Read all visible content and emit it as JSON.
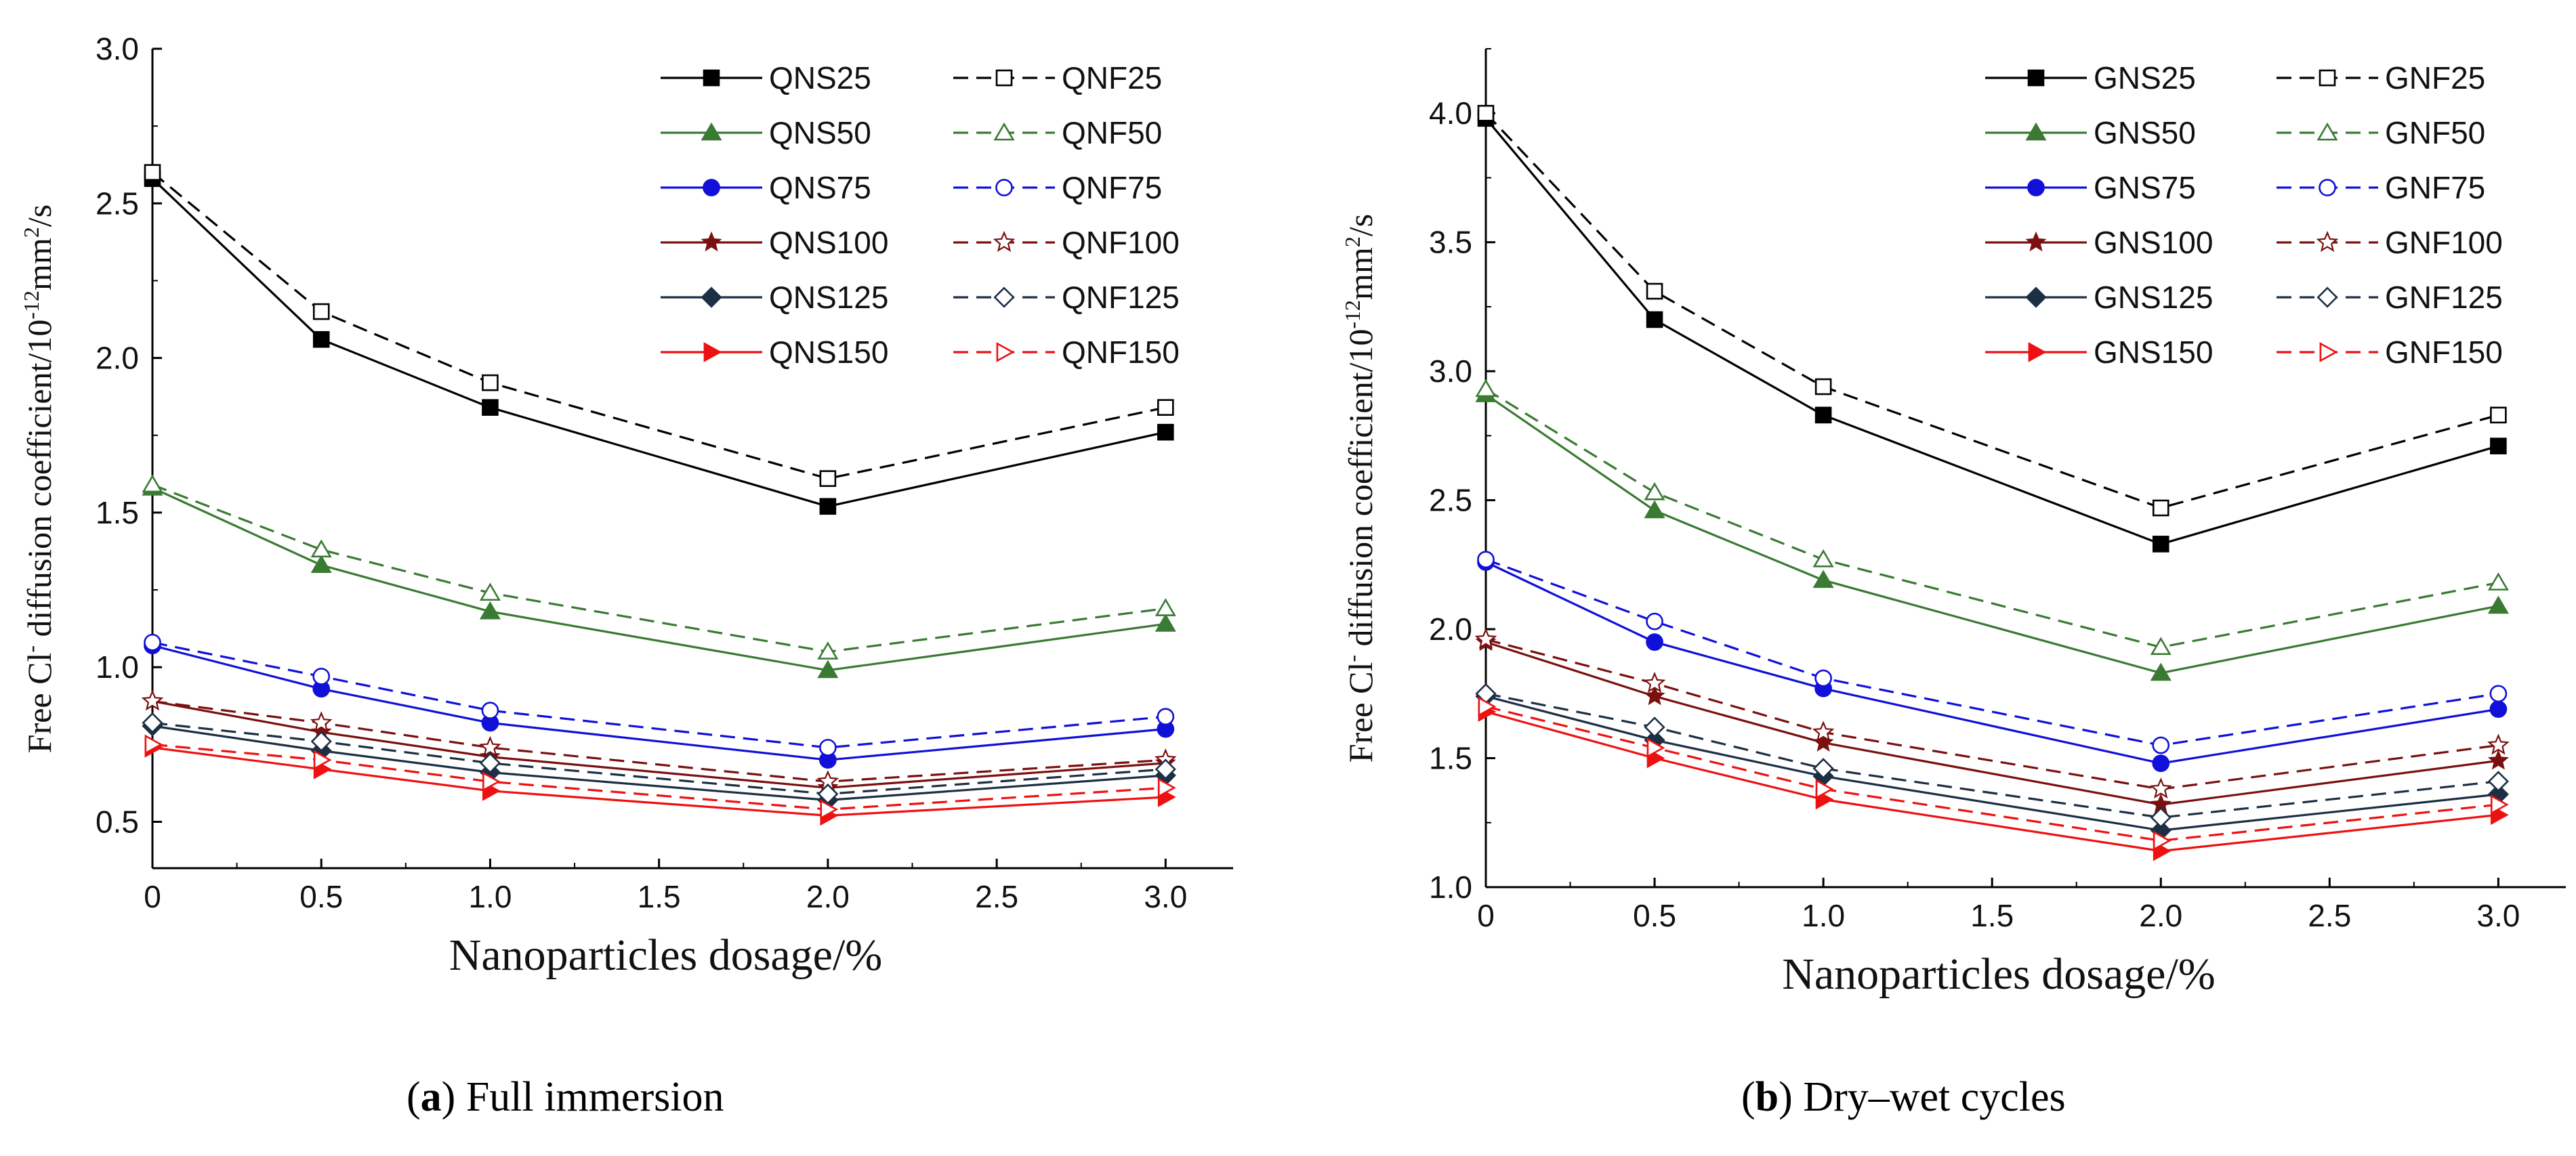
{
  "chart_data": [
    {
      "type": "line",
      "panel_letter": "a",
      "caption": "Full immersion",
      "xlabel": "Nanoparticles dosage/%",
      "ylabel": {
        "pre": "Free Cl",
        "sup1": "-",
        "mid": " diffusion coefficient/10",
        "sup2": "-12",
        "mid2": "mm",
        "sup3": "2",
        "post": "/s"
      },
      "xlim": [
        0,
        3.2
      ],
      "ylim": [
        0.35,
        3.0
      ],
      "x_ticks": [
        0,
        0.5,
        1.0,
        1.5,
        2.0,
        2.5,
        3.0
      ],
      "x_tick_labels": [
        "0",
        "0.5",
        "1.0",
        "1.5",
        "2.0",
        "2.5",
        "3.0"
      ],
      "y_ticks": [
        0.5,
        1.0,
        1.5,
        2.0,
        2.5,
        3.0
      ],
      "y_tick_labels": [
        "0.5",
        "1.0",
        "1.5",
        "2.0",
        "2.5",
        "3.0"
      ],
      "x": [
        0,
        0.5,
        1.0,
        2.0,
        3.0
      ],
      "series": [
        {
          "name": "QNS25",
          "style": "solid",
          "marker": "square",
          "color": "#000000",
          "values": [
            2.58,
            2.06,
            1.84,
            1.52,
            1.76
          ]
        },
        {
          "name": "QNF25",
          "style": "dashed",
          "marker": "square",
          "color": "#000000",
          "values": [
            2.6,
            2.15,
            1.92,
            1.61,
            1.84
          ]
        },
        {
          "name": "QNS50",
          "style": "solid",
          "marker": "triangle",
          "color": "#3a7a33",
          "values": [
            1.58,
            1.33,
            1.18,
            0.99,
            1.14
          ]
        },
        {
          "name": "QNF50",
          "style": "dashed",
          "marker": "triangle",
          "color": "#3a7a33",
          "values": [
            1.59,
            1.38,
            1.24,
            1.05,
            1.19
          ]
        },
        {
          "name": "QNS75",
          "style": "solid",
          "marker": "circle",
          "color": "#1010d8",
          "values": [
            1.07,
            0.93,
            0.82,
            0.7,
            0.8
          ]
        },
        {
          "name": "QNF75",
          "style": "dashed",
          "marker": "circle",
          "color": "#1010d8",
          "values": [
            1.08,
            0.97,
            0.86,
            0.74,
            0.84
          ]
        },
        {
          "name": "QNS100",
          "style": "solid",
          "marker": "star",
          "color": "#7a1010",
          "values": [
            0.89,
            0.79,
            0.71,
            0.61,
            0.69
          ]
        },
        {
          "name": "QNF100",
          "style": "dashed",
          "marker": "star",
          "color": "#7a1010",
          "values": [
            0.89,
            0.82,
            0.74,
            0.63,
            0.7
          ]
        },
        {
          "name": "QNS125",
          "style": "solid",
          "marker": "diamond",
          "color": "#1c2f44",
          "values": [
            0.81,
            0.73,
            0.66,
            0.57,
            0.65
          ]
        },
        {
          "name": "QNF125",
          "style": "dashed",
          "marker": "diamond",
          "color": "#1c2f44",
          "values": [
            0.82,
            0.76,
            0.69,
            0.59,
            0.67
          ]
        },
        {
          "name": "QNS150",
          "style": "solid",
          "marker": "tri-right",
          "color": "#ee1111",
          "values": [
            0.74,
            0.67,
            0.6,
            0.52,
            0.58
          ]
        },
        {
          "name": "QNF150",
          "style": "dashed",
          "marker": "tri-right",
          "color": "#ee1111",
          "values": [
            0.75,
            0.7,
            0.63,
            0.54,
            0.61
          ]
        }
      ]
    },
    {
      "type": "line",
      "panel_letter": "b",
      "caption": "Dry–wet cycles",
      "xlabel": "Nanoparticles dosage/%",
      "ylabel": {
        "pre": "Free Cl",
        "sup1": "-",
        "mid": " diffusion coefficient/10",
        "sup2": "-12",
        "mid2": "mm",
        "sup3": "2",
        "post": "/s"
      },
      "xlim": [
        0,
        3.2
      ],
      "ylim": [
        1.0,
        4.25
      ],
      "x_ticks": [
        0,
        0.5,
        1.0,
        1.5,
        2.0,
        2.5,
        3.0
      ],
      "x_tick_labels": [
        "0",
        "0.5",
        "1.0",
        "1.5",
        "2.0",
        "2.5",
        "3.0"
      ],
      "y_ticks": [
        1.0,
        1.5,
        2.0,
        2.5,
        3.0,
        3.5,
        4.0
      ],
      "y_tick_labels": [
        "1.0",
        "1.5",
        "2.0",
        "2.5",
        "3.0",
        "3.5",
        "4.0"
      ],
      "x": [
        0,
        0.5,
        1.0,
        2.0,
        3.0
      ],
      "series": [
        {
          "name": "GNS25",
          "style": "solid",
          "marker": "square",
          "color": "#000000",
          "values": [
            3.98,
            3.2,
            2.83,
            2.33,
            2.71
          ]
        },
        {
          "name": "GNF25",
          "style": "dashed",
          "marker": "square",
          "color": "#000000",
          "values": [
            4.0,
            3.31,
            2.94,
            2.47,
            2.83
          ]
        },
        {
          "name": "GNS50",
          "style": "solid",
          "marker": "triangle",
          "color": "#3a7a33",
          "values": [
            2.91,
            2.46,
            2.19,
            1.83,
            2.09
          ]
        },
        {
          "name": "GNF50",
          "style": "dashed",
          "marker": "triangle",
          "color": "#3a7a33",
          "values": [
            2.93,
            2.53,
            2.27,
            1.93,
            2.18
          ]
        },
        {
          "name": "GNS75",
          "style": "solid",
          "marker": "circle",
          "color": "#1010d8",
          "values": [
            2.26,
            1.95,
            1.77,
            1.48,
            1.69
          ]
        },
        {
          "name": "GNF75",
          "style": "dashed",
          "marker": "circle",
          "color": "#1010d8",
          "values": [
            2.27,
            2.03,
            1.81,
            1.55,
            1.75
          ]
        },
        {
          "name": "GNS100",
          "style": "solid",
          "marker": "star",
          "color": "#7a1010",
          "values": [
            1.95,
            1.74,
            1.56,
            1.32,
            1.49
          ]
        },
        {
          "name": "GNF100",
          "style": "dashed",
          "marker": "star",
          "color": "#7a1010",
          "values": [
            1.96,
            1.79,
            1.6,
            1.38,
            1.55
          ]
        },
        {
          "name": "GNS125",
          "style": "solid",
          "marker": "diamond",
          "color": "#1c2f44",
          "values": [
            1.74,
            1.57,
            1.43,
            1.22,
            1.36
          ]
        },
        {
          "name": "GNF125",
          "style": "dashed",
          "marker": "diamond",
          "color": "#1c2f44",
          "values": [
            1.75,
            1.62,
            1.46,
            1.27,
            1.41
          ]
        },
        {
          "name": "GNS150",
          "style": "solid",
          "marker": "tri-right",
          "color": "#ee1111",
          "values": [
            1.68,
            1.5,
            1.34,
            1.14,
            1.28
          ]
        },
        {
          "name": "GNF150",
          "style": "dashed",
          "marker": "tri-right",
          "color": "#ee1111",
          "values": [
            1.7,
            1.54,
            1.38,
            1.18,
            1.32
          ]
        }
      ]
    }
  ]
}
